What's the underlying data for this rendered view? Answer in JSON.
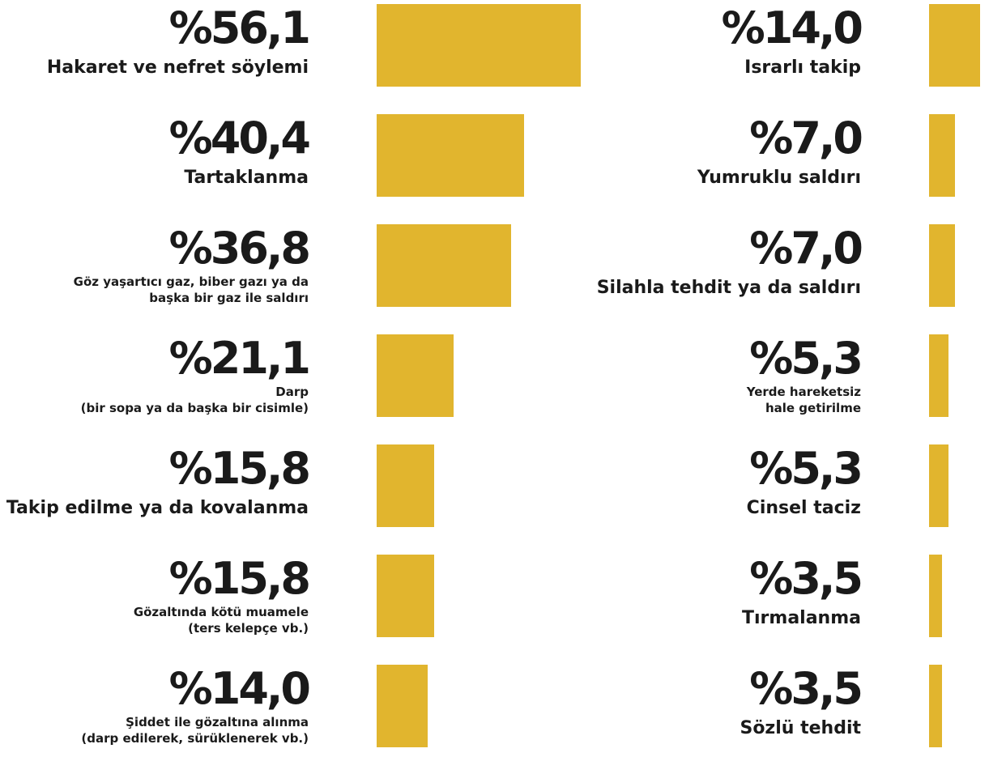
{
  "chart_data": {
    "type": "bar",
    "orientation": "horizontal",
    "color": "#e1b52e",
    "categories": [
      "Hakaret ve nefret söylemi",
      "Tartaklanma",
      "Göz yaşartıcı gaz, biber gazı ya da\nbaşka bir gaz ile saldırı",
      "Darp\n(bir sopa ya da başka bir cisimle)",
      "Takip edilme ya da kovalanma",
      "Gözaltında kötü muamele\n(ters kelepçe vb.)",
      "Şiddet ile gözaltına alınma\n(darp edilerek, sürüklenerek vb.)",
      "Israrlı takip",
      "Yumruklu saldırı",
      "Silahla tehdit ya da saldırı",
      "Yerde hareketsiz\nhale getirilme",
      "Cinsel taciz",
      "Tırmalanma",
      "Sözlü tehdit"
    ],
    "values": [
      56.1,
      40.4,
      36.8,
      21.1,
      15.8,
      15.8,
      14.0,
      14.0,
      7.0,
      7.0,
      5.3,
      5.3,
      3.5,
      3.5
    ],
    "value_labels": [
      "%56,1",
      "%40,4",
      "%36,8",
      "%21,1",
      "%15,8",
      "%15,8",
      "%14,0",
      "%14,0",
      "%7,0",
      "%7,0",
      "%5,3",
      "%5,3",
      "%3,5",
      "%3,5"
    ]
  }
}
